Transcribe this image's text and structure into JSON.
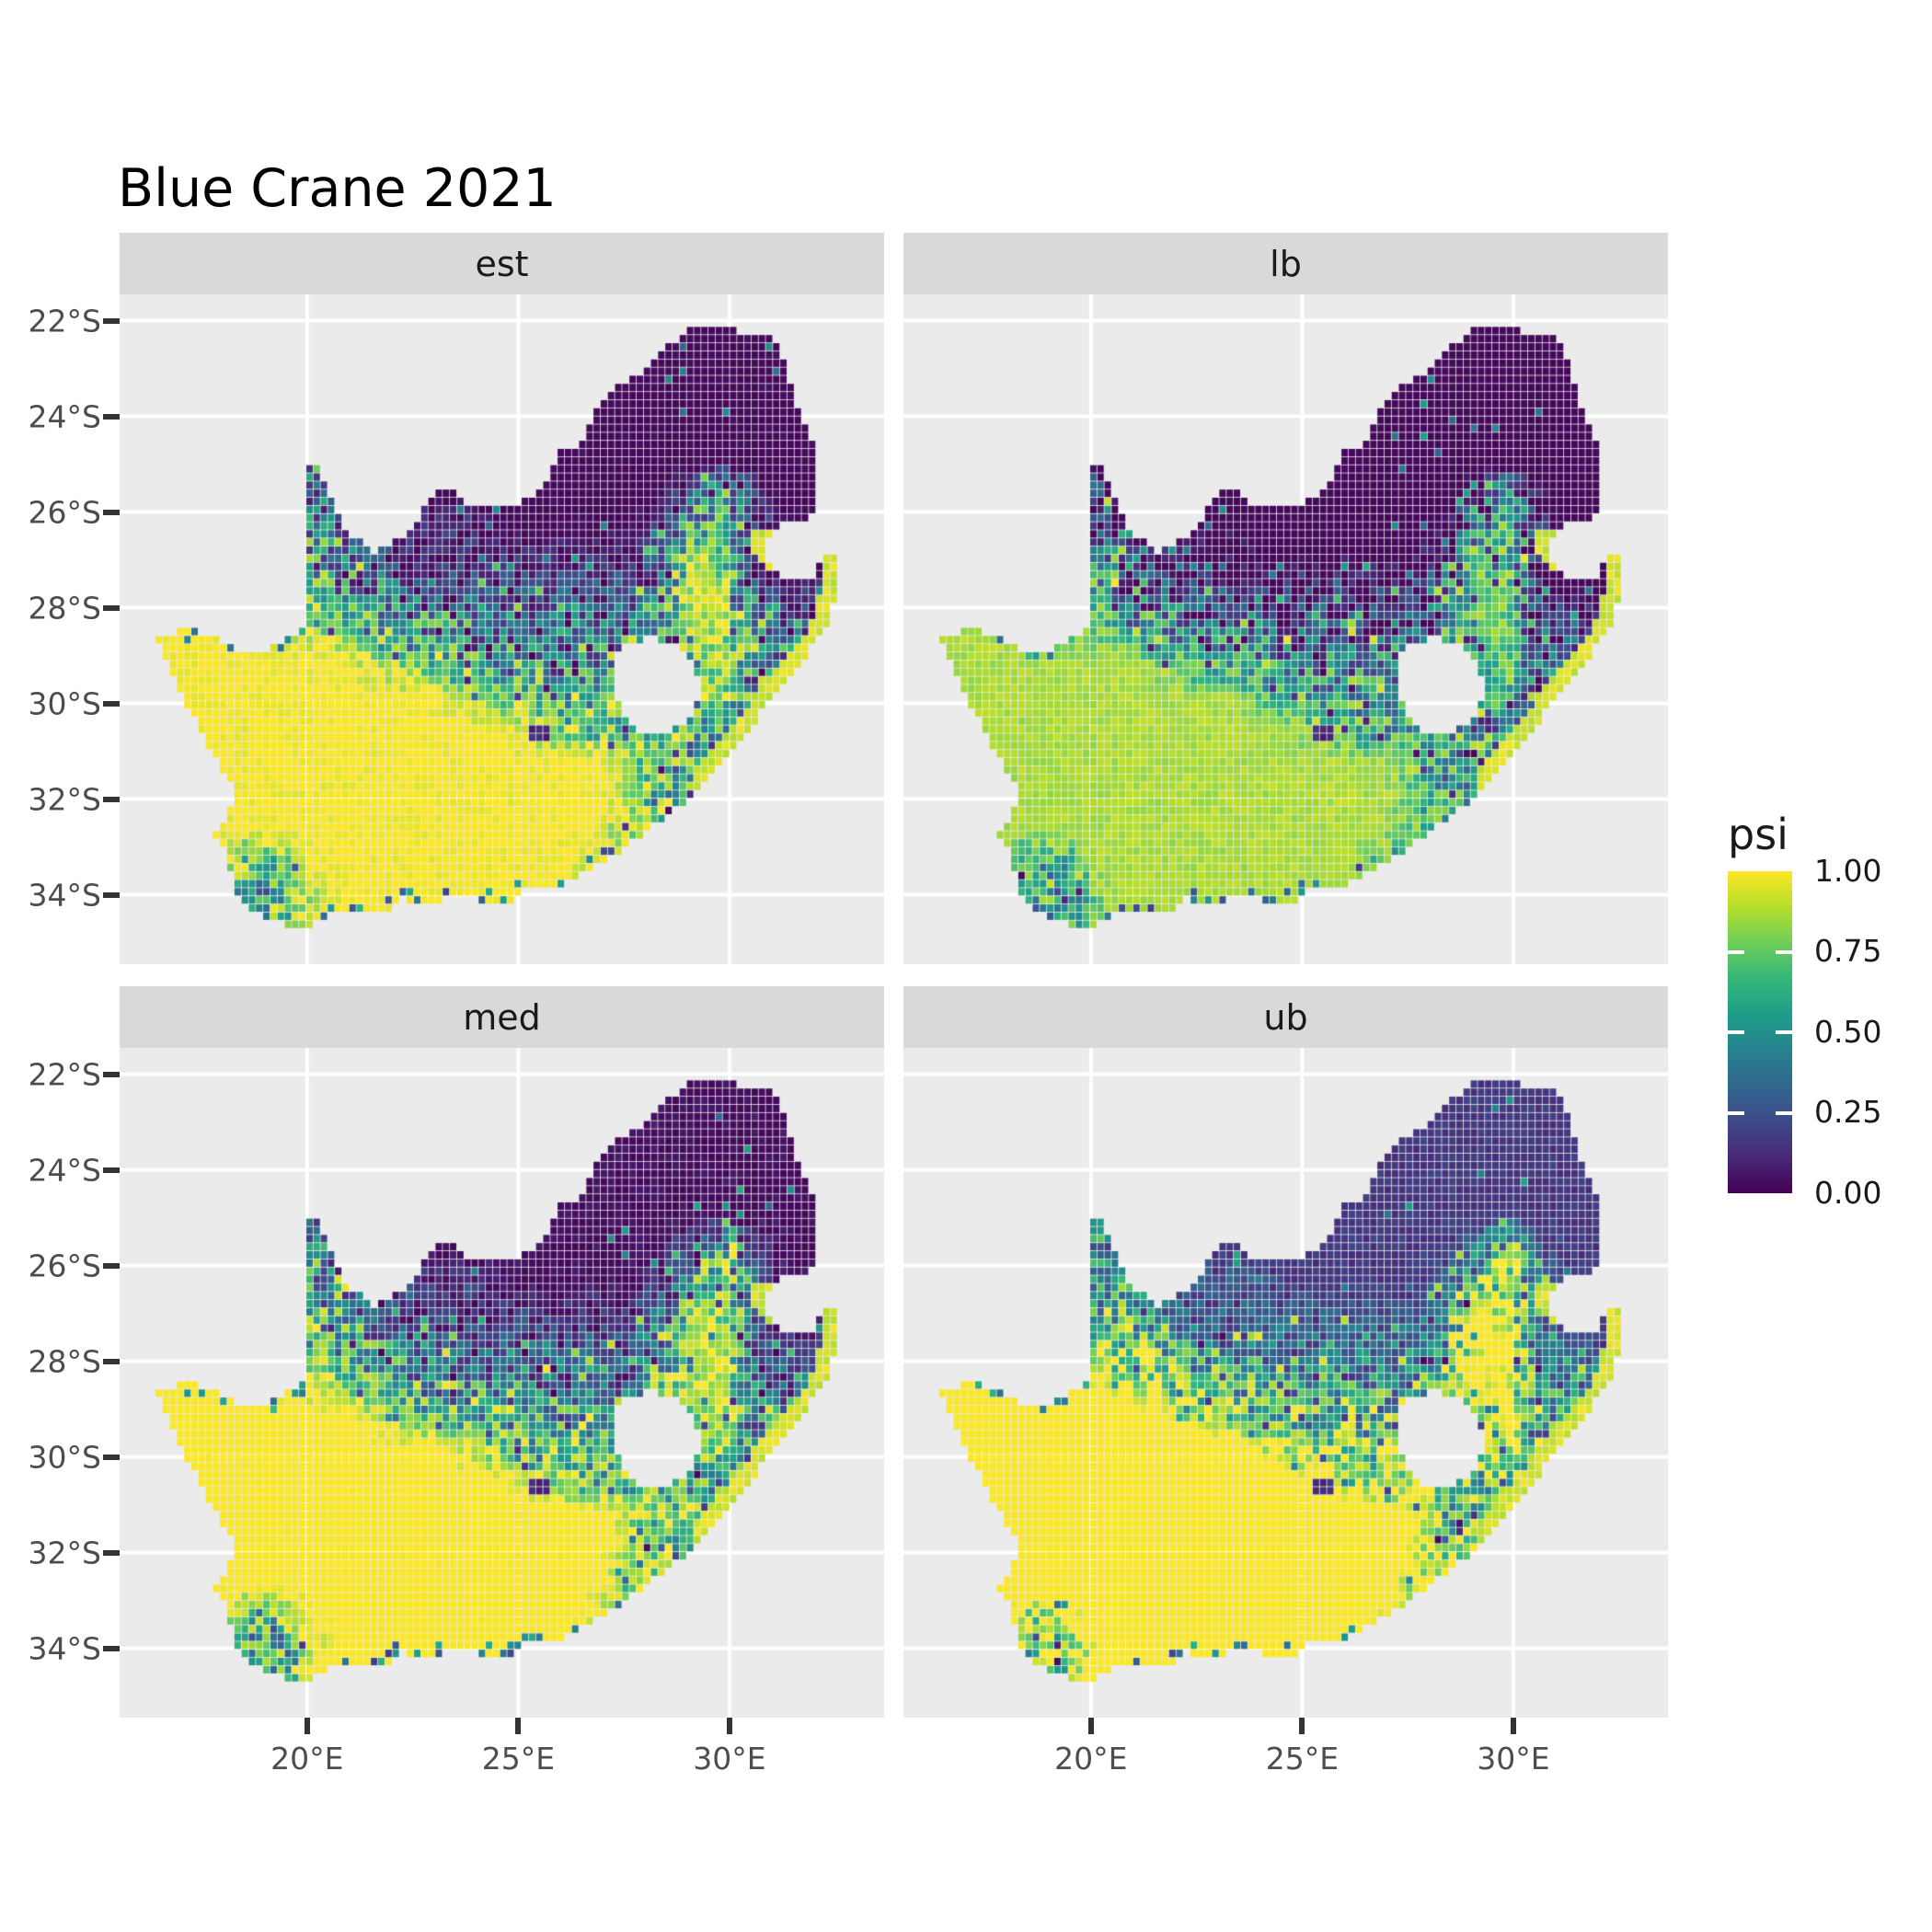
{
  "title": "Blue Crane 2021",
  "legend": {
    "title": "psi",
    "labels": [
      "1.00",
      "0.75",
      "0.50",
      "0.25",
      "0.00"
    ],
    "label_values": [
      1.0,
      0.75,
      0.5,
      0.25,
      0.0
    ],
    "tick_values": [
      0.25,
      0.5,
      0.75
    ]
  },
  "axes": {
    "x_ticks": [
      {
        "label": "20°E",
        "lon": 20
      },
      {
        "label": "25°E",
        "lon": 25
      },
      {
        "label": "30°E",
        "lon": 30
      }
    ],
    "y_ticks": [
      {
        "label": "22°S",
        "lat": -22
      },
      {
        "label": "24°S",
        "lat": -24
      },
      {
        "label": "26°S",
        "lat": -26
      },
      {
        "label": "28°S",
        "lat": -28
      },
      {
        "label": "30°S",
        "lat": -30
      },
      {
        "label": "32°S",
        "lat": -32
      },
      {
        "label": "34°S",
        "lat": -34
      }
    ]
  },
  "colors": {
    "background": "#ffffff",
    "panel_bg": "#ebebeb",
    "strip_bg": "#d9d9d9",
    "grid": "#ffffff",
    "axis_text": "#4d4d4d",
    "tick_mark": "#333333",
    "text": "#1a1a1a",
    "viridis": [
      "#440154",
      "#482878",
      "#3e4a89",
      "#31688e",
      "#26828e",
      "#1f9e89",
      "#35b779",
      "#6ece58",
      "#b5de2b",
      "#fde725"
    ]
  },
  "chart_data": {
    "type": "heatmap",
    "title": "Blue Crane 2021",
    "value_name": "psi",
    "value_range": [
      0.0,
      1.0
    ],
    "facets": [
      {
        "label": "est",
        "offset": 0.0
      },
      {
        "label": "lb",
        "offset": -0.13
      },
      {
        "label": "med",
        "offset": 0.03
      },
      {
        "label": "ub",
        "offset": 0.16
      }
    ],
    "extent": {
      "lon_min": 15.56,
      "lon_max": 33.66,
      "lat_min": -35.45,
      "lat_max": -21.45
    },
    "cell_deg": 0.17,
    "psi_grid": {
      "comment": "coarse occupancy field, 0=psi 0 (dark purple) .. 9=psi 1 (yellow); rows north to south",
      "lon_start": 16.375,
      "dlon": 0.75,
      "lat_start": -22.15,
      "dlat": 0.7,
      "rows": [
        [
          0,
          0,
          0,
          0,
          0,
          0,
          0,
          0,
          0,
          0,
          0,
          0,
          0,
          0,
          0,
          0,
          0,
          0,
          0,
          0,
          0,
          0,
          0,
          0
        ],
        [
          0,
          0,
          0,
          0,
          0,
          0,
          0,
          0,
          0,
          0,
          0,
          0,
          0,
          0,
          0,
          0,
          0,
          0,
          0,
          0,
          0,
          0,
          0,
          0
        ],
        [
          0,
          0,
          0,
          0,
          0,
          0,
          0,
          0,
          0,
          0,
          0,
          0,
          0,
          0,
          0,
          0,
          0,
          0,
          0,
          0,
          0,
          0,
          0,
          0
        ],
        [
          0,
          0,
          0,
          0,
          0,
          0,
          0,
          0,
          0,
          0,
          0,
          0,
          0,
          0,
          0,
          0,
          0,
          0,
          0,
          0,
          0,
          0,
          0,
          0
        ],
        [
          0,
          0,
          0,
          0,
          0,
          2,
          0,
          0,
          0,
          0,
          0,
          0,
          0,
          0,
          0,
          0,
          0,
          0,
          0,
          0,
          0,
          0,
          0,
          0
        ],
        [
          0,
          0,
          0,
          0,
          0,
          3,
          1,
          0,
          0,
          0,
          0,
          0,
          0,
          0,
          0,
          0,
          0,
          2,
          6,
          1,
          0,
          0,
          0,
          0
        ],
        [
          0,
          0,
          0,
          0,
          0,
          4,
          3,
          1,
          1,
          1,
          1,
          0,
          0,
          0,
          0,
          0,
          1,
          5,
          7,
          2,
          0,
          0,
          1,
          0
        ],
        [
          0,
          0,
          0,
          0,
          0,
          5,
          4,
          2,
          1,
          1,
          1,
          1,
          1,
          1,
          1,
          1,
          3,
          8,
          7,
          1,
          0,
          0,
          2,
          0
        ],
        [
          0,
          0,
          0,
          0,
          0,
          7,
          5,
          4,
          3,
          2,
          2,
          2,
          2,
          2,
          2,
          2,
          4,
          8,
          8,
          2,
          1,
          1,
          3,
          0
        ],
        [
          9,
          9,
          9,
          9,
          8,
          8,
          7,
          6,
          5,
          4,
          4,
          3,
          3,
          3,
          3,
          3,
          5,
          8,
          8,
          3,
          2,
          3,
          3,
          0
        ],
        [
          9,
          9,
          9,
          9,
          9,
          9,
          9,
          8,
          7,
          6,
          5,
          5,
          4,
          4,
          5,
          6,
          6,
          7,
          8,
          4,
          5,
          6,
          0,
          0
        ],
        [
          9,
          9,
          9,
          9,
          9,
          9,
          9,
          9,
          9,
          9,
          8,
          7,
          6,
          6,
          6,
          7,
          7,
          7,
          7,
          4,
          6,
          0,
          0,
          0
        ],
        [
          9,
          9,
          9,
          9,
          9,
          9,
          9,
          9,
          9,
          9,
          9,
          9,
          8,
          7,
          6,
          7,
          6,
          5,
          5,
          6,
          0,
          0,
          0,
          0
        ],
        [
          9,
          9,
          9,
          9,
          9,
          9,
          9,
          9,
          9,
          9,
          9,
          9,
          9,
          9,
          9,
          8,
          6,
          5,
          6,
          0,
          0,
          0,
          0,
          0
        ],
        [
          9,
          9,
          9,
          9,
          9,
          9,
          9,
          9,
          9,
          9,
          9,
          9,
          9,
          9,
          9,
          8,
          5,
          7,
          0,
          0,
          0,
          0,
          0,
          0
        ],
        [
          9,
          9,
          9,
          9,
          9,
          9,
          9,
          9,
          9,
          9,
          9,
          9,
          9,
          9,
          9,
          7,
          8,
          9,
          0,
          0,
          0,
          0,
          0,
          0
        ],
        [
          9,
          9,
          9,
          6,
          7,
          9,
          9,
          9,
          9,
          9,
          9,
          9,
          9,
          9,
          8,
          8,
          9,
          9,
          0,
          0,
          0,
          0,
          0,
          0
        ],
        [
          9,
          9,
          9,
          6,
          5,
          8,
          9,
          9,
          9,
          9,
          9,
          9,
          9,
          9,
          9,
          9,
          9,
          9,
          0,
          0,
          0,
          0,
          0,
          0
        ],
        [
          9,
          9,
          9,
          7,
          7,
          9,
          9,
          9,
          9,
          9,
          9,
          9,
          9,
          9,
          9,
          9,
          9,
          9,
          0,
          0,
          0,
          0,
          0,
          0
        ],
        [
          9,
          9,
          9,
          9,
          9,
          9,
          9,
          9,
          9,
          9,
          9,
          9,
          9,
          9,
          9,
          9,
          9,
          9,
          0,
          0,
          0,
          0,
          0,
          0
        ]
      ]
    },
    "polygons": {
      "south_africa": [
        [
          16.45,
          -28.6
        ],
        [
          17.15,
          -28.45
        ],
        [
          17.75,
          -28.6
        ],
        [
          18.35,
          -28.9
        ],
        [
          19.15,
          -28.85
        ],
        [
          19.7,
          -28.55
        ],
        [
          19.99,
          -28.4
        ],
        [
          19.99,
          -24.95
        ],
        [
          20.3,
          -25.1
        ],
        [
          20.5,
          -25.5
        ],
        [
          20.7,
          -25.95
        ],
        [
          20.9,
          -26.3
        ],
        [
          21.5,
          -26.85
        ],
        [
          22.15,
          -26.6
        ],
        [
          22.7,
          -26.1
        ],
        [
          22.9,
          -25.65
        ],
        [
          23.5,
          -25.55
        ],
        [
          23.95,
          -25.95
        ],
        [
          24.45,
          -25.8
        ],
        [
          24.9,
          -25.85
        ],
        [
          25.4,
          -25.7
        ],
        [
          25.65,
          -25.45
        ],
        [
          25.95,
          -24.7
        ],
        [
          26.5,
          -24.6
        ],
        [
          26.9,
          -23.7
        ],
        [
          27.3,
          -23.35
        ],
        [
          27.95,
          -23.05
        ],
        [
          28.35,
          -22.6
        ],
        [
          29.1,
          -22.2
        ],
        [
          29.8,
          -22.1
        ],
        [
          30.35,
          -22.3
        ],
        [
          31.1,
          -22.35
        ],
        [
          31.3,
          -22.9
        ],
        [
          31.6,
          -23.8
        ],
        [
          31.95,
          -24.4
        ],
        [
          32.05,
          -25.2
        ],
        [
          32.1,
          -26.1
        ],
        [
          31.45,
          -26.2
        ],
        [
          31.0,
          -26.45
        ],
        [
          30.85,
          -26.8
        ],
        [
          31.05,
          -27.2
        ],
        [
          31.55,
          -27.45
        ],
        [
          32.0,
          -27.4
        ],
        [
          32.15,
          -26.95
        ],
        [
          32.65,
          -26.9
        ],
        [
          32.55,
          -27.7
        ],
        [
          32.25,
          -28.5
        ],
        [
          31.7,
          -29.15
        ],
        [
          31.05,
          -29.85
        ],
        [
          30.35,
          -30.7
        ],
        [
          29.7,
          -31.4
        ],
        [
          28.95,
          -32.05
        ],
        [
          28.2,
          -32.6
        ],
        [
          27.6,
          -33.0
        ],
        [
          26.9,
          -33.4
        ],
        [
          26.25,
          -33.75
        ],
        [
          25.65,
          -33.9
        ],
        [
          25.05,
          -33.95
        ],
        [
          24.85,
          -34.2
        ],
        [
          24.0,
          -34.1
        ],
        [
          23.35,
          -34.05
        ],
        [
          22.9,
          -34.25
        ],
        [
          22.25,
          -34.1
        ],
        [
          21.8,
          -34.4
        ],
        [
          21.15,
          -34.45
        ],
        [
          20.45,
          -34.45
        ],
        [
          19.95,
          -34.8
        ],
        [
          19.35,
          -34.6
        ],
        [
          18.85,
          -34.4
        ],
        [
          18.45,
          -34.25
        ],
        [
          18.35,
          -33.9
        ],
        [
          18.1,
          -33.2
        ],
        [
          17.85,
          -32.75
        ],
        [
          18.25,
          -32.1
        ],
        [
          18.2,
          -31.7
        ],
        [
          17.9,
          -31.3
        ],
        [
          17.5,
          -30.6
        ],
        [
          17.05,
          -29.9
        ],
        [
          16.75,
          -29.3
        ]
      ],
      "lesotho_hole": [
        [
          27.25,
          -29.15
        ],
        [
          27.6,
          -28.75
        ],
        [
          28.15,
          -28.65
        ],
        [
          28.75,
          -28.8
        ],
        [
          29.1,
          -29.15
        ],
        [
          29.35,
          -29.6
        ],
        [
          29.2,
          -30.1
        ],
        [
          28.85,
          -30.5
        ],
        [
          28.3,
          -30.7
        ],
        [
          27.8,
          -30.55
        ],
        [
          27.45,
          -30.2
        ],
        [
          27.25,
          -29.7
        ]
      ]
    },
    "spots": [
      {
        "lon": 25.5,
        "lat": -30.62,
        "rx": 0.3,
        "ry": 0.13,
        "psi": 0.07
      }
    ],
    "noise": {
      "base_amp": 0.05,
      "span": 0.55,
      "outlier_rate": 0.09
    }
  }
}
